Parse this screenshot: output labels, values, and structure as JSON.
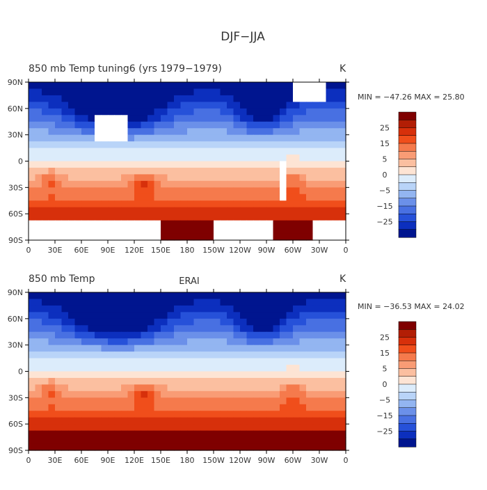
{
  "page": {
    "title": "DJF−JJA"
  },
  "panels": [
    {
      "left_title": "850 mb Temp   tuning6 (yrs 1979−1979)",
      "center_title": "",
      "units": "K",
      "stats": "MIN = −47.26  MAX =  25.80"
    },
    {
      "left_title": "850 mb Temp",
      "center_title": "ERAI",
      "units": "K",
      "stats": "MIN = −36.53  MAX =  24.02"
    }
  ],
  "chart_data": [
    {
      "type": "heatmap",
      "title": "850 mb Temp   tuning6 (yrs 1979−1979)",
      "units": "K",
      "min": -47.26,
      "max": 25.8,
      "xlim": [
        0,
        360
      ],
      "ylim": [
        -90,
        90
      ],
      "x_ticks": [
        "0",
        "30E",
        "60E",
        "90E",
        "120E",
        "150E",
        "180",
        "150W",
        "120W",
        "90W",
        "60W",
        "30W",
        "0"
      ],
      "y_ticks": [
        "90N",
        "60N",
        "30N",
        "0",
        "30S",
        "60S",
        "90S"
      ],
      "colorbar_labels": [
        "25",
        "15",
        "5",
        "0",
        "−5",
        "−15",
        "−25"
      ]
    },
    {
      "type": "heatmap",
      "title": "850 mb Temp",
      "subtitle": "ERAI",
      "units": "K",
      "min": -36.53,
      "max": 24.02,
      "xlim": [
        0,
        360
      ],
      "ylim": [
        -90,
        90
      ],
      "x_ticks": [
        "0",
        "30E",
        "60E",
        "90E",
        "120E",
        "150E",
        "180",
        "150W",
        "120W",
        "90W",
        "60W",
        "30W",
        "0"
      ],
      "y_ticks": [
        "90N",
        "60N",
        "30N",
        "0",
        "30S",
        "60S",
        "90S"
      ],
      "colorbar_labels": [
        "25",
        "15",
        "5",
        "0",
        "−5",
        "−15",
        "−25"
      ]
    }
  ],
  "colorbar": {
    "colors": [
      "#7f0000",
      "#b21e05",
      "#d7300b",
      "#f04e1b",
      "#f57a4c",
      "#f99c75",
      "#fbbfa0",
      "#fde4d4",
      "#dcecfb",
      "#b9d4f8",
      "#93b5f1",
      "#6b90e9",
      "#4870e2",
      "#2651d9",
      "#0c2fbe",
      "#00158f"
    ]
  }
}
